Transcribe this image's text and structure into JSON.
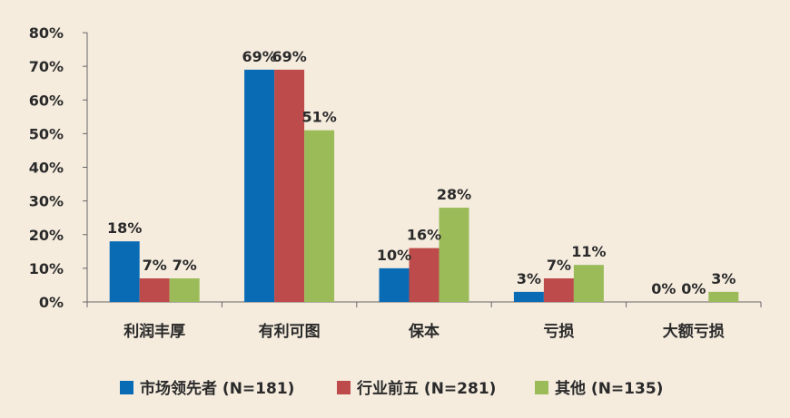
{
  "chart_data": {
    "type": "bar",
    "categories": [
      "利润丰厚",
      "有利可图",
      "保本",
      "亏损",
      "大额亏损"
    ],
    "series": [
      {
        "name": "市场领先者 (N=181)",
        "color": "#0a6bb5",
        "values": [
          18,
          69,
          10,
          3,
          0
        ]
      },
      {
        "name": "行业前五 (N=281)",
        "color": "#be4b4b",
        "values": [
          7,
          69,
          16,
          7,
          0
        ]
      },
      {
        "name": "其他 (N=135)",
        "color": "#9bbb59",
        "values": [
          7,
          51,
          28,
          11,
          3
        ]
      }
    ],
    "data_labels": [
      [
        "18%",
        "69%",
        "10%",
        "3%",
        "0%"
      ],
      [
        "7%",
        "69%",
        "16%",
        "7%",
        "0%"
      ],
      [
        "7%",
        "51%",
        "28%",
        "11%",
        "3%"
      ]
    ],
    "y_ticks": [
      "0%",
      "10%",
      "20%",
      "30%",
      "40%",
      "50%",
      "60%",
      "70%",
      "80%"
    ],
    "ylim": [
      0,
      80
    ],
    "grid": false,
    "legend": "bottom",
    "title": "",
    "xlabel": "",
    "ylabel": ""
  }
}
